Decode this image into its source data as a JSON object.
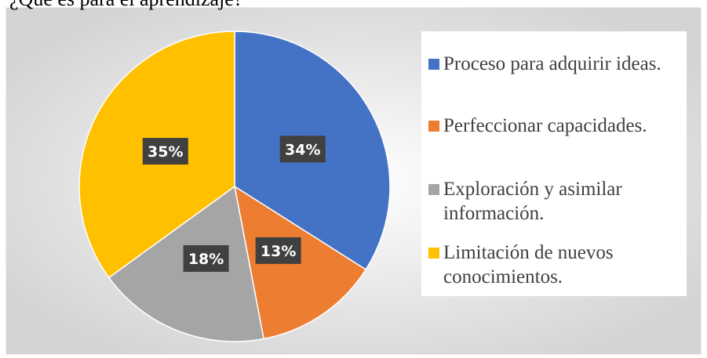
{
  "chart_data": {
    "type": "pie",
    "title": "¿Qué es para el aprendizaje?",
    "categories": [
      "Proceso para adquirir ideas.",
      "Perfeccionar capacidades.",
      "Exploración y asimilar información.",
      "Limitación de nuevos conocimientos."
    ],
    "values": [
      34,
      13,
      18,
      35
    ],
    "value_labels": [
      "34%",
      "13%",
      "18%",
      "35%"
    ],
    "colors": [
      "#4472c4",
      "#ed7d31",
      "#a5a5a5",
      "#ffc000"
    ],
    "legend": "right"
  }
}
